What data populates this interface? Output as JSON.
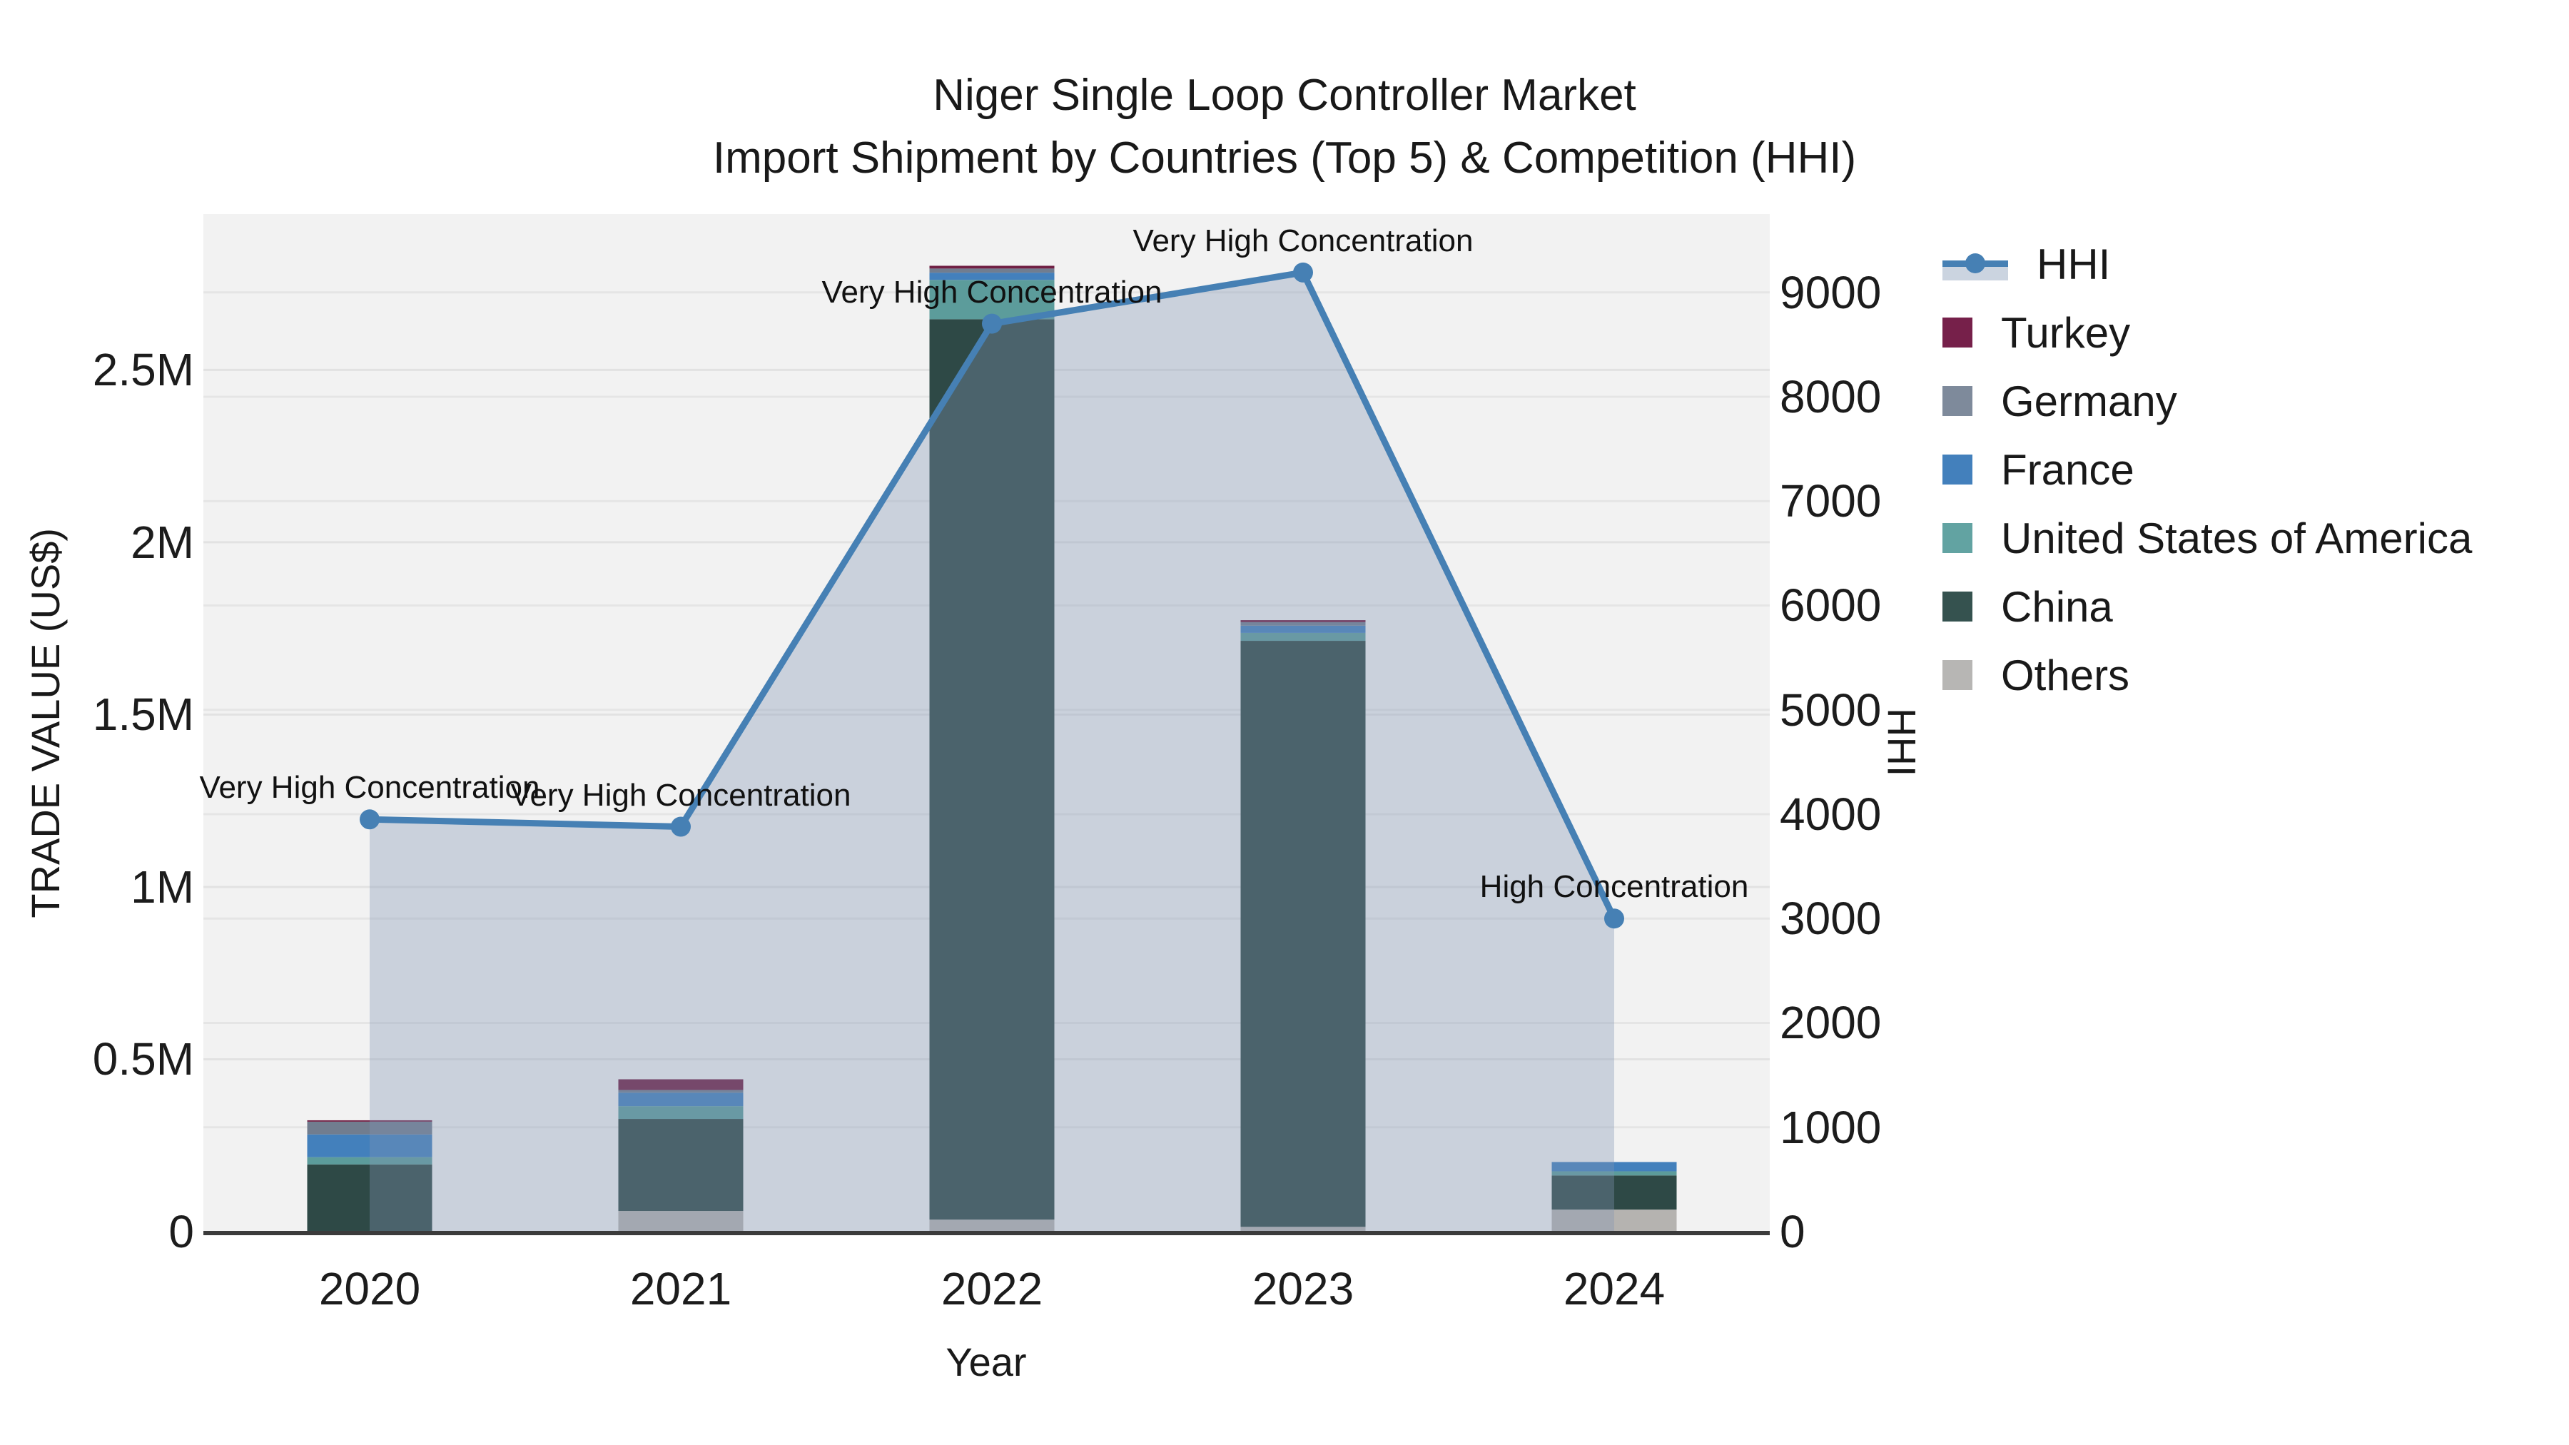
{
  "title": {
    "line1": "Niger Single Loop Controller Market",
    "line2": "Import Shipment by Countries (Top 5) & Competition (HHI)"
  },
  "axes": {
    "x": {
      "title": "Year",
      "ticks": [
        "2020",
        "2021",
        "2022",
        "2023",
        "2024"
      ]
    },
    "y_left": {
      "title": "TRADE VALUE (US$)",
      "ticks": [
        {
          "label": "0",
          "value": 0
        },
        {
          "label": "0.5M",
          "value": 500000
        },
        {
          "label": "1M",
          "value": 1000000
        },
        {
          "label": "1.5M",
          "value": 1500000
        },
        {
          "label": "2M",
          "value": 2000000
        },
        {
          "label": "2.5M",
          "value": 2500000
        }
      ]
    },
    "y_right": {
      "title": "HHI",
      "ticks": [
        {
          "label": "0",
          "value": 0
        },
        {
          "label": "1000",
          "value": 1000
        },
        {
          "label": "2000",
          "value": 2000
        },
        {
          "label": "3000",
          "value": 3000
        },
        {
          "label": "4000",
          "value": 4000
        },
        {
          "label": "5000",
          "value": 5000
        },
        {
          "label": "6000",
          "value": 6000
        },
        {
          "label": "7000",
          "value": 7000
        },
        {
          "label": "8000",
          "value": 8000
        },
        {
          "label": "9000",
          "value": 9000
        }
      ]
    }
  },
  "legend": {
    "items": [
      {
        "label": "HHI",
        "type": "line",
        "color": "#4680B4"
      },
      {
        "label": "Turkey",
        "type": "swatch",
        "color": "#76204A"
      },
      {
        "label": "Germany",
        "type": "swatch",
        "color": "#7E8A9B"
      },
      {
        "label": "France",
        "type": "swatch",
        "color": "#4380BC"
      },
      {
        "label": "United States of America",
        "type": "swatch",
        "color": "#62A3A2"
      },
      {
        "label": "China",
        "type": "swatch",
        "color": "#35524F"
      },
      {
        "label": "Others",
        "type": "swatch",
        "color": "#B7B6B4"
      }
    ]
  },
  "chart_data": {
    "type": "bar+line",
    "title": "Niger Single Loop Controller Market — Import Shipment by Countries (Top 5) & Competition (HHI)",
    "categories": [
      "2020",
      "2021",
      "2022",
      "2023",
      "2024"
    ],
    "xlabel": "Year",
    "ylabel_left": "TRADE VALUE (US$)",
    "ylabel_right": "HHI",
    "ylim_left": [
      0,
      2952000
    ],
    "ylim_right": [
      0,
      9750
    ],
    "grid": true,
    "legend_position": "right",
    "bar_stack_order_bottom_to_top": [
      "Others",
      "China",
      "United States of America",
      "France",
      "Germany",
      "Turkey"
    ],
    "bar_series": [
      {
        "name": "Others",
        "color": "#B5B3B0",
        "values": [
          0,
          60000,
          35000,
          14000,
          64000
        ]
      },
      {
        "name": "China",
        "color": "#2E4946",
        "values": [
          195000,
          267000,
          2612000,
          1700000,
          99000
        ]
      },
      {
        "name": "United States of America",
        "color": "#5C9C9B",
        "values": [
          21000,
          37000,
          114000,
          23000,
          12000
        ]
      },
      {
        "name": "France",
        "color": "#4380BC",
        "values": [
          66000,
          39000,
          21000,
          21000,
          27000
        ]
      },
      {
        "name": "Germany",
        "color": "#717D8F",
        "values": [
          37000,
          8000,
          12000,
          10000,
          0
        ]
      },
      {
        "name": "Turkey",
        "color": "#701F44",
        "values": [
          4000,
          31000,
          8000,
          6000,
          0
        ]
      }
    ],
    "line_series": {
      "name": "HHI",
      "color": "#4680B4",
      "area_fill": "rgba(128,150,180,0.35)",
      "values": [
        3950,
        3880,
        8700,
        9190,
        3000
      ]
    },
    "annotations": [
      {
        "category": "2020",
        "text": "Very High Concentration"
      },
      {
        "category": "2021",
        "text": "Very High Concentration"
      },
      {
        "category": "2022",
        "text": "Very High Concentration"
      },
      {
        "category": "2023",
        "text": "Very High Concentration"
      },
      {
        "category": "2024",
        "text": "High Concentration"
      }
    ]
  }
}
